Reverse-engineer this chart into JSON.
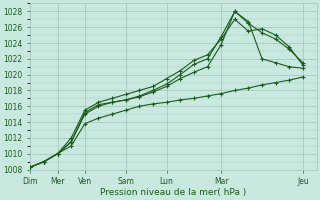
{
  "bg_color": "#c8e8e0",
  "grid_color": "#a8c8c0",
  "line_color": "#1a5c1a",
  "marker_color": "#1a5c1a",
  "title": "Pression niveau de la mer( hPa )",
  "ylim": [
    1008,
    1029
  ],
  "yticks": [
    1008,
    1010,
    1012,
    1014,
    1016,
    1018,
    1020,
    1022,
    1024,
    1026,
    1028
  ],
  "xlabel_major": [
    "Dim",
    "Mer",
    "Ven",
    "Sam",
    "Lun",
    "Mar",
    "Jeu"
  ],
  "xlabel_major_pos": [
    0,
    2,
    4,
    7,
    10,
    14,
    20
  ],
  "xlim": [
    0,
    21
  ],
  "series": [
    [
      1008.3,
      1009.0,
      1010.0,
      1011.0,
      1013.8,
      1014.5,
      1015.0,
      1015.5,
      1016.0,
      1016.3,
      1016.5,
      1016.8,
      1017.0,
      1017.3,
      1017.6,
      1018.0,
      1018.3,
      1018.7,
      1019.0,
      1019.3,
      1019.7
    ],
    [
      1008.3,
      1009.0,
      1010.0,
      1011.5,
      1015.0,
      1016.0,
      1016.5,
      1016.8,
      1017.2,
      1017.8,
      1018.5,
      1019.5,
      1020.3,
      1021.0,
      1023.8,
      1028.0,
      1026.7,
      1022.0,
      1021.5,
      1021.0,
      1020.8
    ],
    [
      1008.3,
      1009.0,
      1010.0,
      1011.5,
      1015.2,
      1016.2,
      1016.5,
      1016.8,
      1017.3,
      1018.0,
      1018.8,
      1020.0,
      1021.3,
      1022.0,
      1024.8,
      1028.0,
      1026.5,
      1025.3,
      1024.5,
      1023.2,
      1021.5
    ],
    [
      1008.3,
      1009.0,
      1010.0,
      1012.0,
      1015.5,
      1016.5,
      1017.0,
      1017.5,
      1018.0,
      1018.5,
      1019.5,
      1020.5,
      1021.8,
      1022.5,
      1024.5,
      1027.0,
      1025.5,
      1025.8,
      1025.0,
      1023.5,
      1021.2
    ]
  ]
}
